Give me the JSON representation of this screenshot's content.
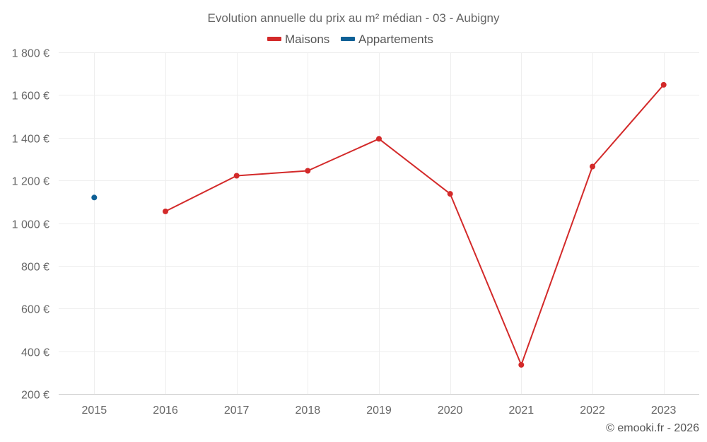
{
  "chart_data": {
    "type": "line",
    "title": "Evolution annuelle du prix au m² médian - 03 - Aubigny",
    "categories": [
      "2015",
      "2016",
      "2017",
      "2018",
      "2019",
      "2020",
      "2021",
      "2022",
      "2023"
    ],
    "series": [
      {
        "name": "Maisons",
        "color": "#d32a2a",
        "values": [
          null,
          1055,
          1222,
          1245,
          1395,
          1137,
          336,
          1265,
          1648
        ]
      },
      {
        "name": "Appartements",
        "color": "#0f6096",
        "values": [
          1120,
          null,
          null,
          null,
          null,
          null,
          null,
          null,
          null
        ]
      }
    ],
    "ylim": [
      200,
      1800
    ],
    "yticks": [
      200,
      400,
      600,
      800,
      1000,
      1200,
      1400,
      1600,
      1800
    ],
    "ytick_labels": [
      "200 €",
      "400 €",
      "600 €",
      "800 €",
      "1 000 €",
      "1 200 €",
      "1 400 €",
      "1 600 €",
      "1 800 €"
    ],
    "xlabel": "",
    "ylabel": "",
    "grid": true,
    "legend_position": "top-center"
  },
  "credit": "© emooki.fr - 2026"
}
